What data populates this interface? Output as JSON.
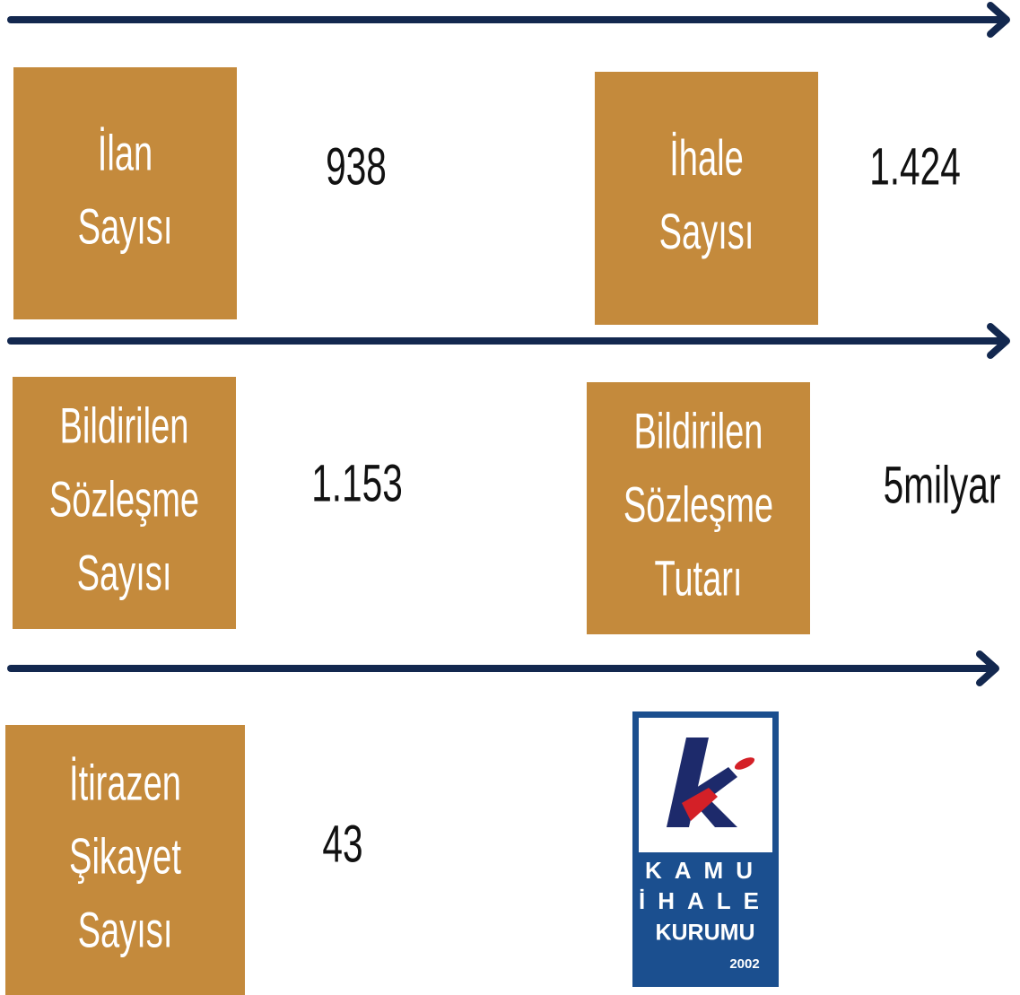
{
  "cards": [
    {
      "label": [
        "İlan",
        "Sayısı"
      ],
      "value": "938"
    },
    {
      "label": [
        "İhale",
        "Sayısı"
      ],
      "value": "1.424"
    },
    {
      "label": [
        "Bildirilen",
        "Sözleşme",
        "Sayısı"
      ],
      "value": "1.153"
    },
    {
      "label": [
        "Bildirilen",
        "Sözleşme",
        "Tutarı"
      ],
      "value": "5milyar"
    },
    {
      "label": [
        "İtirazen",
        "Şikayet",
        "Sayısı"
      ],
      "value": "43"
    }
  ],
  "logo": {
    "lines": [
      "KAMU",
      "İHALE",
      "KURUMU"
    ],
    "year": "2002"
  }
}
